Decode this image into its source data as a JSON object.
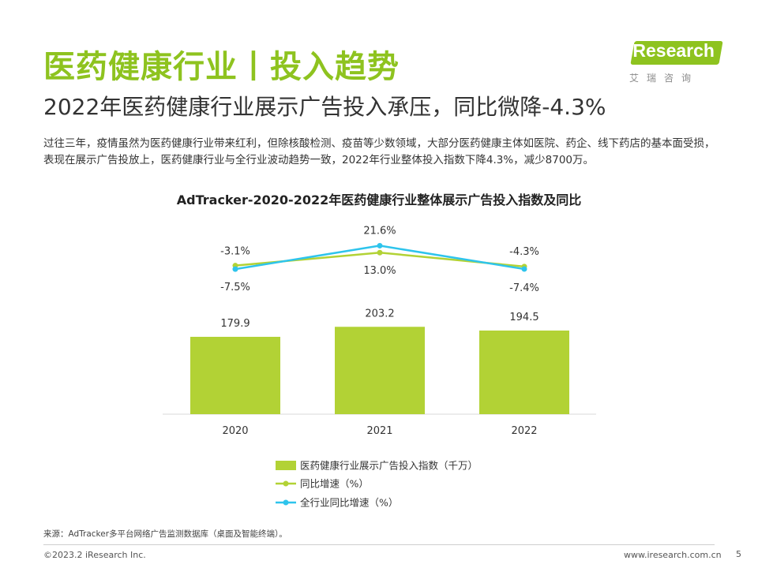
{
  "header": {
    "title": "医药健康行业丨投入趋势",
    "subtitle": "2022年医药健康行业展示广告投入承压，同比微降-4.3%",
    "paragraph": "过往三年，疫情虽然为医药健康行业带来红利，但除核酸检测、疫苗等少数领域，大部分医药健康主体如医院、药企、线下药店的基本面受损，表现在展示广告投放上，医药健康行业与全行业波动趋势一致，2022年行业整体投入指数下降4.3%，减少8700万。"
  },
  "logo": {
    "text": "iResearch",
    "sub": "艾瑞咨询"
  },
  "chart_data": {
    "type": "bar",
    "title": "AdTracker-2020-2022年医药健康行业整体展示广告投入指数及同比",
    "categories": [
      "2020",
      "2021",
      "2022"
    ],
    "series": [
      {
        "name": "医药健康行业展示广告投入指数（千万）",
        "type": "bar",
        "values": [
          179.9,
          203.2,
          194.5
        ],
        "labels": [
          "179.9",
          "203.2",
          "194.5"
        ]
      },
      {
        "name": "同比增速（%）",
        "type": "line",
        "values": [
          -3.1,
          13.0,
          -4.3
        ],
        "labels": [
          "-3.1%",
          "13.0%",
          "-4.3%"
        ]
      },
      {
        "name": "全行业同比增速（%）",
        "type": "line",
        "values": [
          -7.5,
          21.6,
          -7.4
        ],
        "labels": [
          "-7.5%",
          "21.6%",
          "-7.4%"
        ]
      }
    ],
    "colors": {
      "bar": "#b2d235",
      "yoy": "#b2d235",
      "all_industry": "#2ec4ec"
    },
    "legend_position": "bottom",
    "grid": false
  },
  "footer": {
    "source": "来源：AdTracker多平台网络广告监测数据库（桌面及智能终端）。",
    "copyright": "©2023.2 iResearch Inc.",
    "website": "www.iresearch.com.cn",
    "page": "5"
  }
}
